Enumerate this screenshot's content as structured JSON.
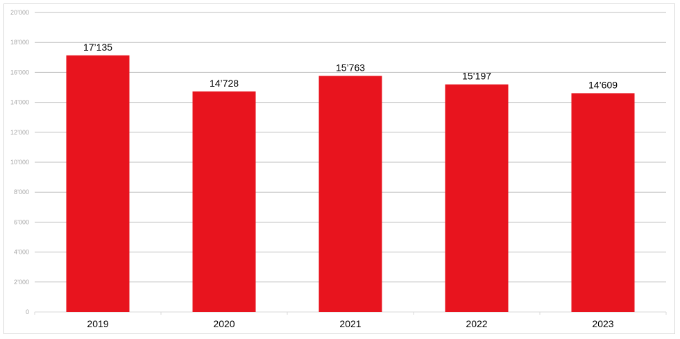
{
  "chart_data": {
    "type": "bar",
    "title": "",
    "xlabel": "",
    "ylabel": "",
    "categories": [
      "2019",
      "2020",
      "2021",
      "2022",
      "2023"
    ],
    "values": [
      17135,
      14728,
      15763,
      15197,
      14609
    ],
    "value_labels": [
      "17’135",
      "14’728",
      "15’763",
      "15’197",
      "14’609"
    ],
    "ylim": [
      0,
      20000
    ],
    "y_ticks": [
      0,
      2000,
      4000,
      6000,
      8000,
      10000,
      12000,
      14000,
      16000,
      18000,
      20000
    ],
    "y_tick_labels": [
      "0",
      "2’000",
      "4’000",
      "6’000",
      "8’000",
      "10’000",
      "12’000",
      "14’000",
      "16’000",
      "18’000",
      "20’000"
    ],
    "grid": true,
    "legend": "none",
    "colors": {
      "bar": "#e8141e",
      "grid": "#bfbfbf",
      "tick_text": "#a6a6a6"
    }
  }
}
